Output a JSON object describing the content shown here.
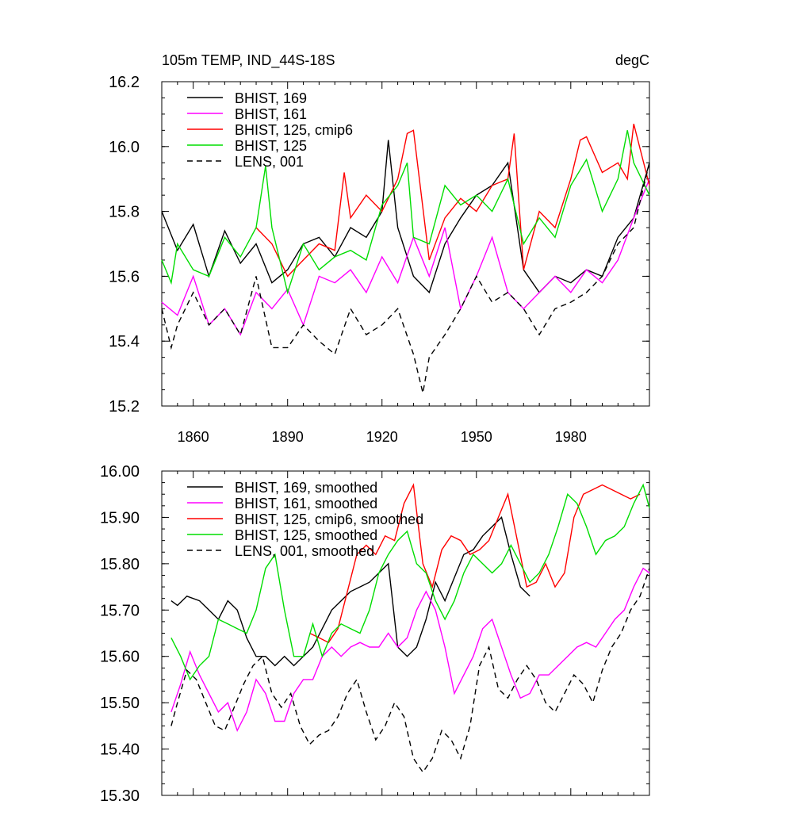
{
  "chart_data": [
    {
      "type": "line",
      "title": "105m TEMP, IND_44S-18S",
      "units": "degC",
      "xlabel": "",
      "ylabel": "",
      "xlim": [
        1850,
        2005
      ],
      "ylim": [
        15.2,
        16.2
      ],
      "xticks": [
        1860,
        1890,
        1920,
        1950,
        1980
      ],
      "xtick_labels": [
        "1860",
        "1890",
        "1920",
        "1950",
        "1980"
      ],
      "yticks": [
        15.2,
        15.4,
        15.6,
        15.8,
        16.0,
        16.2
      ],
      "ytick_labels": [
        "15.2",
        "15.4",
        "15.6",
        "15.8",
        "16.0",
        "16.2"
      ],
      "legend": [
        "BHIST, 169",
        "BHIST, 161",
        "BHIST, 125, cmip6",
        "BHIST, 125",
        "LENS, 001"
      ],
      "series": [
        {
          "name": "BHIST, 169",
          "color": "#000000",
          "dash": "solid",
          "x": [
            1850,
            1855,
            1860,
            1865,
            1870,
            1875,
            1880,
            1885,
            1890,
            1895,
            1900,
            1905,
            1910,
            1915,
            1920,
            1922,
            1925,
            1930,
            1935,
            1940,
            1945,
            1950,
            1955,
            1960,
            1965,
            1970,
            1975,
            1980,
            1985,
            1990,
            1995,
            2000,
            2005
          ],
          "y": [
            15.8,
            15.68,
            15.76,
            15.6,
            15.74,
            15.64,
            15.7,
            15.58,
            15.62,
            15.7,
            15.72,
            15.66,
            15.75,
            15.72,
            15.8,
            16.02,
            15.75,
            15.6,
            15.55,
            15.7,
            15.78,
            15.85,
            15.88,
            15.95,
            15.62,
            15.55,
            15.6,
            15.58,
            15.62,
            15.6,
            15.72,
            15.78,
            15.95
          ]
        },
        {
          "name": "BHIST, 161",
          "color": "#ff00ff",
          "dash": "solid",
          "x": [
            1850,
            1855,
            1860,
            1865,
            1870,
            1875,
            1880,
            1885,
            1890,
            1895,
            1900,
            1905,
            1910,
            1915,
            1920,
            1925,
            1930,
            1935,
            1940,
            1945,
            1950,
            1955,
            1960,
            1965,
            1970,
            1975,
            1980,
            1985,
            1990,
            1995,
            2000,
            2005
          ],
          "y": [
            15.52,
            15.48,
            15.6,
            15.45,
            15.5,
            15.42,
            15.55,
            15.5,
            15.56,
            15.45,
            15.6,
            15.58,
            15.62,
            15.55,
            15.66,
            15.58,
            15.72,
            15.6,
            15.75,
            15.5,
            15.6,
            15.72,
            15.55,
            15.5,
            15.55,
            15.6,
            15.55,
            15.62,
            15.58,
            15.65,
            15.78,
            15.9
          ]
        },
        {
          "name": "BHIST, 125, cmip6",
          "color": "#ff0000",
          "dash": "solid",
          "x": [
            1880,
            1885,
            1890,
            1895,
            1900,
            1905,
            1908,
            1910,
            1915,
            1920,
            1925,
            1928,
            1930,
            1935,
            1940,
            1945,
            1950,
            1955,
            1960,
            1962,
            1965,
            1970,
            1975,
            1980,
            1983,
            1985,
            1990,
            1995,
            1998,
            2000,
            2005
          ],
          "y": [
            15.75,
            15.7,
            15.6,
            15.65,
            15.7,
            15.68,
            15.92,
            15.78,
            15.85,
            15.8,
            15.9,
            16.04,
            16.05,
            15.65,
            15.78,
            15.84,
            15.8,
            15.88,
            15.9,
            16.04,
            15.62,
            15.8,
            15.75,
            15.9,
            16.02,
            16.03,
            15.92,
            15.95,
            15.9,
            16.07,
            15.88
          ]
        },
        {
          "name": "BHIST, 125",
          "color": "#00dd00",
          "dash": "solid",
          "x": [
            1850,
            1853,
            1855,
            1860,
            1865,
            1870,
            1875,
            1880,
            1883,
            1885,
            1890,
            1895,
            1900,
            1905,
            1910,
            1915,
            1920,
            1925,
            1928,
            1930,
            1935,
            1940,
            1945,
            1950,
            1955,
            1960,
            1965,
            1970,
            1975,
            1980,
            1985,
            1990,
            1995,
            1998,
            2000,
            2005
          ],
          "y": [
            15.65,
            15.58,
            15.7,
            15.62,
            15.6,
            15.72,
            15.66,
            15.75,
            15.94,
            15.75,
            15.55,
            15.7,
            15.62,
            15.66,
            15.68,
            15.65,
            15.82,
            15.88,
            15.95,
            15.72,
            15.7,
            15.88,
            15.82,
            15.85,
            15.8,
            15.9,
            15.7,
            15.78,
            15.72,
            15.88,
            15.96,
            15.8,
            15.9,
            16.05,
            15.95,
            15.85
          ]
        },
        {
          "name": "LENS, 001",
          "color": "#000000",
          "dash": "dashed",
          "x": [
            1850,
            1853,
            1855,
            1860,
            1865,
            1870,
            1875,
            1880,
            1885,
            1890,
            1895,
            1900,
            1905,
            1910,
            1915,
            1920,
            1925,
            1930,
            1933,
            1935,
            1940,
            1945,
            1950,
            1955,
            1960,
            1965,
            1970,
            1975,
            1980,
            1985,
            1990,
            1995,
            2000,
            2005
          ],
          "y": [
            15.5,
            15.38,
            15.45,
            15.55,
            15.45,
            15.5,
            15.42,
            15.6,
            15.38,
            15.38,
            15.45,
            15.4,
            15.36,
            15.5,
            15.42,
            15.45,
            15.5,
            15.36,
            15.24,
            15.35,
            15.42,
            15.5,
            15.6,
            15.52,
            15.55,
            15.5,
            15.42,
            15.5,
            15.52,
            15.55,
            15.6,
            15.7,
            15.75,
            15.95
          ]
        }
      ]
    },
    {
      "type": "line",
      "title": "",
      "xlabel": "",
      "ylabel": "",
      "xlim": [
        1850,
        2005
      ],
      "ylim": [
        15.3,
        16.0
      ],
      "xticks": [
        1860,
        1890,
        1920,
        1950,
        1980
      ],
      "yticks": [
        15.3,
        15.4,
        15.5,
        15.6,
        15.7,
        15.8,
        15.9,
        16.0
      ],
      "ytick_labels": [
        "15.30",
        "15.40",
        "15.50",
        "15.60",
        "15.70",
        "15.80",
        "15.90",
        "16.00"
      ],
      "legend": [
        "BHIST, 169, smoothed",
        "BHIST, 161, smoothed",
        "BHIST, 125, cmip6, smoothed",
        "BHIST, 125, smoothed",
        "LENS, 001, smoothed"
      ],
      "series": [
        {
          "name": "BHIST, 169, smoothed",
          "color": "#000000",
          "dash": "solid",
          "x": [
            1853,
            1855,
            1858,
            1862,
            1865,
            1868,
            1871,
            1874,
            1877,
            1880,
            1883,
            1886,
            1889,
            1892,
            1895,
            1898,
            1901,
            1904,
            1907,
            1910,
            1913,
            1916,
            1919,
            1922,
            1925,
            1928,
            1931,
            1934,
            1937,
            1940,
            1943,
            1946,
            1949,
            1952,
            1955,
            1958,
            1961,
            1964,
            1967
          ],
          "y": [
            15.72,
            15.71,
            15.73,
            15.72,
            15.7,
            15.68,
            15.72,
            15.7,
            15.64,
            15.6,
            15.6,
            15.58,
            15.6,
            15.58,
            15.6,
            15.62,
            15.66,
            15.7,
            15.72,
            15.74,
            15.75,
            15.76,
            15.78,
            15.8,
            15.62,
            15.6,
            15.62,
            15.68,
            15.76,
            15.72,
            15.77,
            15.82,
            15.83,
            15.86,
            15.88,
            15.9,
            15.82,
            15.75,
            15.73
          ]
        },
        {
          "name": "BHIST, 161, smoothed",
          "color": "#ff00ff",
          "dash": "solid",
          "x": [
            1853,
            1856,
            1859,
            1862,
            1865,
            1868,
            1871,
            1874,
            1877,
            1880,
            1883,
            1886,
            1889,
            1892,
            1895,
            1898,
            1901,
            1904,
            1907,
            1910,
            1913,
            1916,
            1919,
            1922,
            1925,
            1928,
            1931,
            1934,
            1937,
            1940,
            1943,
            1946,
            1949,
            1952,
            1955,
            1958,
            1961,
            1964,
            1967,
            1970,
            1973,
            1976,
            1979,
            1982,
            1985,
            1988,
            1991,
            1994,
            1997,
            2000,
            2003,
            2005
          ],
          "y": [
            15.48,
            15.54,
            15.61,
            15.56,
            15.52,
            15.48,
            15.5,
            15.44,
            15.48,
            15.55,
            15.52,
            15.46,
            15.46,
            15.52,
            15.55,
            15.55,
            15.6,
            15.62,
            15.6,
            15.62,
            15.63,
            15.62,
            15.62,
            15.65,
            15.62,
            15.64,
            15.7,
            15.74,
            15.7,
            15.62,
            15.52,
            15.56,
            15.6,
            15.66,
            15.68,
            15.62,
            15.56,
            15.51,
            15.52,
            15.56,
            15.56,
            15.58,
            15.6,
            15.62,
            15.63,
            15.62,
            15.65,
            15.68,
            15.7,
            15.75,
            15.79,
            15.78
          ]
        },
        {
          "name": "BHIST, 125, cmip6, smoothed",
          "color": "#ff0000",
          "dash": "solid",
          "x": [
            1897,
            1900,
            1903,
            1906,
            1909,
            1912,
            1915,
            1918,
            1921,
            1924,
            1927,
            1930,
            1933,
            1936,
            1939,
            1942,
            1945,
            1948,
            1951,
            1954,
            1957,
            1960,
            1963,
            1966,
            1969,
            1972,
            1975,
            1978,
            1981,
            1984,
            1987,
            1990,
            1993,
            1996,
            1999,
            2002
          ],
          "y": [
            15.65,
            15.64,
            15.63,
            15.66,
            15.74,
            15.82,
            15.84,
            15.82,
            15.86,
            15.85,
            15.93,
            15.97,
            15.8,
            15.75,
            15.83,
            15.86,
            15.85,
            15.82,
            15.83,
            15.85,
            15.9,
            15.95,
            15.85,
            15.75,
            15.76,
            15.8,
            15.75,
            15.78,
            15.9,
            15.95,
            15.96,
            15.97,
            15.96,
            15.95,
            15.94,
            15.95
          ]
        },
        {
          "name": "BHIST, 125, smoothed",
          "color": "#00dd00",
          "dash": "solid",
          "x": [
            1853,
            1856,
            1859,
            1862,
            1865,
            1868,
            1871,
            1874,
            1877,
            1880,
            1883,
            1886,
            1889,
            1892,
            1895,
            1898,
            1901,
            1904,
            1907,
            1910,
            1913,
            1916,
            1919,
            1922,
            1925,
            1928,
            1931,
            1934,
            1937,
            1940,
            1943,
            1946,
            1949,
            1952,
            1955,
            1958,
            1961,
            1964,
            1967,
            1970,
            1973,
            1976,
            1979,
            1982,
            1985,
            1988,
            1991,
            1994,
            1997,
            2000,
            2003,
            2005
          ],
          "y": [
            15.64,
            15.6,
            15.55,
            15.58,
            15.6,
            15.68,
            15.67,
            15.66,
            15.65,
            15.7,
            15.79,
            15.82,
            15.7,
            15.6,
            15.6,
            15.67,
            15.6,
            15.65,
            15.67,
            15.66,
            15.65,
            15.7,
            15.78,
            15.82,
            15.85,
            15.87,
            15.8,
            15.78,
            15.72,
            15.68,
            15.72,
            15.78,
            15.82,
            15.8,
            15.78,
            15.8,
            15.84,
            15.8,
            15.76,
            15.78,
            15.82,
            15.88,
            15.95,
            15.93,
            15.88,
            15.82,
            15.85,
            15.86,
            15.88,
            15.93,
            15.97,
            15.92
          ]
        },
        {
          "name": "LENS, 001, smoothed",
          "color": "#000000",
          "dash": "dashed",
          "x": [
            1853,
            1855,
            1858,
            1861,
            1864,
            1867,
            1870,
            1873,
            1876,
            1879,
            1882,
            1885,
            1888,
            1891,
            1894,
            1897,
            1900,
            1903,
            1906,
            1909,
            1912,
            1915,
            1918,
            1921,
            1924,
            1927,
            1930,
            1933,
            1936,
            1939,
            1942,
            1945,
            1948,
            1951,
            1954,
            1957,
            1960,
            1963,
            1966,
            1969,
            1972,
            1975,
            1978,
            1981,
            1984,
            1987,
            1990,
            1993,
            1996,
            1999,
            2002,
            2005
          ],
          "y": [
            15.45,
            15.5,
            15.57,
            15.55,
            15.5,
            15.45,
            15.44,
            15.49,
            15.54,
            15.58,
            15.6,
            15.52,
            15.49,
            15.52,
            15.45,
            15.41,
            15.43,
            15.44,
            15.47,
            15.52,
            15.55,
            15.48,
            15.42,
            15.45,
            15.5,
            15.47,
            15.38,
            15.35,
            15.38,
            15.44,
            15.42,
            15.38,
            15.45,
            15.58,
            15.62,
            15.53,
            15.51,
            15.55,
            15.58,
            15.55,
            15.5,
            15.48,
            15.52,
            15.56,
            15.54,
            15.5,
            15.57,
            15.62,
            15.65,
            15.7,
            15.73,
            15.79
          ]
        }
      ]
    }
  ]
}
